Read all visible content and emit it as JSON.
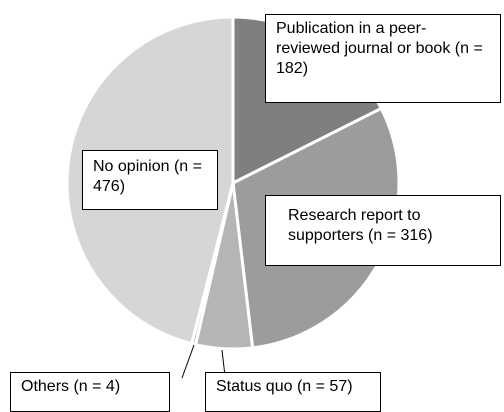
{
  "chart_data": {
    "type": "pie",
    "categories": [
      "Publication in a peer-reviewed journal or book",
      "Research report to supporters",
      "Status quo",
      "Others",
      "No opinion"
    ],
    "values": [
      182,
      316,
      57,
      4,
      476
    ],
    "value_labels": [
      "(n = 182)",
      "(n = 316)",
      "(n = 57)",
      "(n = 4)",
      "(n = 476)"
    ],
    "colors": [
      "#7f7f7f",
      "#9c9c9c",
      "#b5b5b5",
      "#c9c9c9",
      "#d6d6d6"
    ]
  }
}
